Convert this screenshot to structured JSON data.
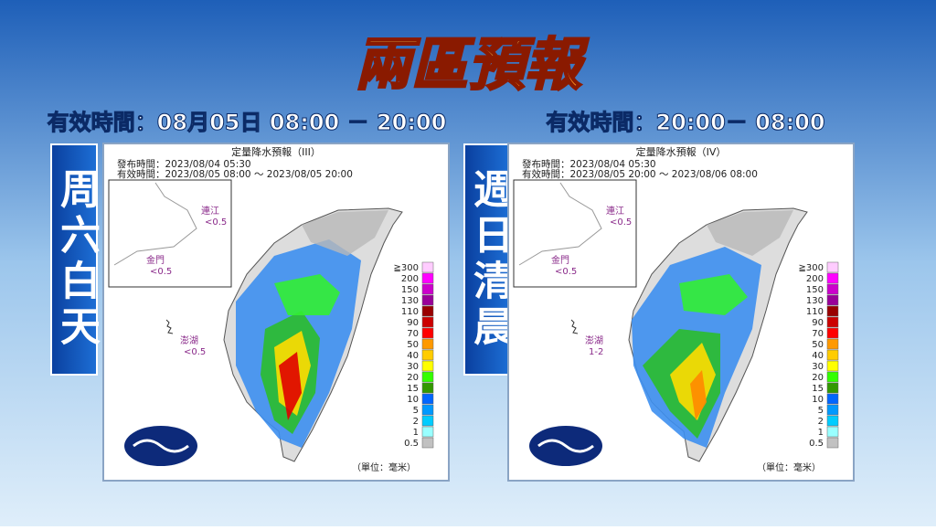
{
  "header": {
    "title": "兩區預報"
  },
  "panels": [
    {
      "validity": "有效時間：08月05日 08:00 － 20:00",
      "side_label": "周六白天",
      "map": {
        "title": "定量降水預報（III）",
        "issued": "發布時間：2023/08/04 05:30",
        "valid": "有效時間：2023/08/05 08:00 ～ 2023/08/05 20:00",
        "islands": [
          {
            "name": "連江",
            "value": "<0.5"
          },
          {
            "name": "金門",
            "value": "<0.5"
          },
          {
            "name": "澎湖",
            "value": "<0.5"
          }
        ],
        "unit": "（單位：毫米）"
      }
    },
    {
      "validity": "有效時間：20:00－ 08:00",
      "side_label": "週日清晨",
      "map": {
        "title": "定量降水預報（IV）",
        "issued": "發布時間：2023/08/04 05:30",
        "valid": "有效時間：2023/08/05 20:00 ～ 2023/08/06 08:00",
        "islands": [
          {
            "name": "連江",
            "value": "<0.5"
          },
          {
            "name": "金門",
            "value": "<0.5"
          },
          {
            "name": "澎湖",
            "value": "1-2"
          }
        ],
        "unit": "（單位：毫米）"
      }
    }
  ],
  "legend": [
    "≧300",
    "200",
    "150",
    "130",
    "110",
    "90",
    "70",
    "50",
    "40",
    "30",
    "20",
    "15",
    "10",
    "5",
    "2",
    "1",
    "0.5"
  ]
}
